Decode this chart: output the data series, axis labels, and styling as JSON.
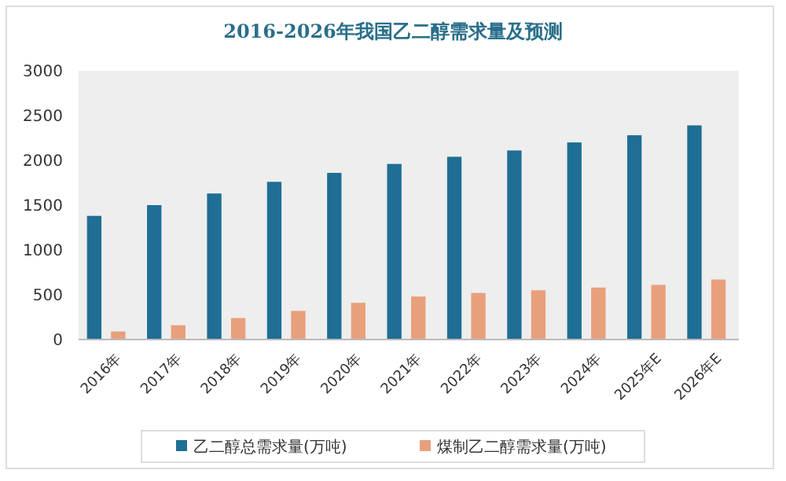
{
  "chart_data": {
    "type": "bar",
    "title": "2016-2026年我国乙二醇需求量及预测",
    "categories": [
      "2016年",
      "2017年",
      "2018年",
      "2019年",
      "2020年",
      "2021年",
      "2022年",
      "2023年",
      "2024年",
      "2025年E",
      "2026年E"
    ],
    "series": [
      {
        "name": "乙二醇总需求量(万吨)",
        "color": "#1f6e94",
        "values": [
          1380,
          1500,
          1630,
          1760,
          1860,
          1960,
          2040,
          2110,
          2200,
          2280,
          2390
        ]
      },
      {
        "name": "煤制乙二醇需求量(万吨)",
        "color": "#e8a07c",
        "values": [
          90,
          160,
          240,
          320,
          410,
          480,
          520,
          550,
          580,
          610,
          670
        ]
      }
    ],
    "ylim": [
      0,
      3000
    ],
    "yticks": [
      0,
      500,
      1000,
      1500,
      2000,
      2500,
      3000
    ],
    "grid": false,
    "legend": "bottom"
  }
}
